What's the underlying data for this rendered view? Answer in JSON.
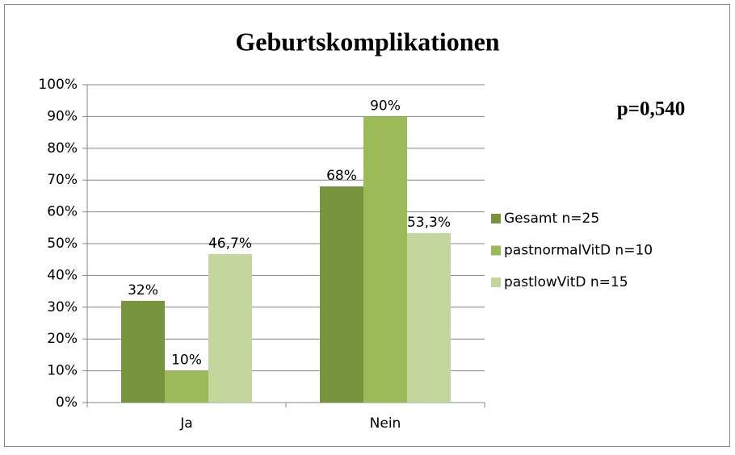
{
  "chart_data": {
    "type": "bar",
    "title": "Geburtskomplikationen",
    "annotation": "p=0,540",
    "categories": [
      "Ja",
      "Nein"
    ],
    "series": [
      {
        "name": "Gesamt n=25",
        "color": "#77933c",
        "values": [
          32,
          68
        ],
        "value_labels": [
          "32%",
          "68%"
        ]
      },
      {
        "name": "pastnormalVitD n=10",
        "color": "#9bbb59",
        "values": [
          10,
          90
        ],
        "value_labels": [
          "10%",
          "90%"
        ]
      },
      {
        "name": "pastlowVitD n=15",
        "color": "#c3d69b",
        "values": [
          46.7,
          53.3
        ],
        "value_labels": [
          "46,7%",
          "53,3%"
        ]
      }
    ],
    "ylim": [
      0,
      100
    ],
    "yticks": [
      {
        "value": 0,
        "label": "0%"
      },
      {
        "value": 10,
        "label": "10%"
      },
      {
        "value": 20,
        "label": "20%"
      },
      {
        "value": 30,
        "label": "30%"
      },
      {
        "value": 40,
        "label": "40%"
      },
      {
        "value": 50,
        "label": "50%"
      },
      {
        "value": 60,
        "label": "60%"
      },
      {
        "value": 70,
        "label": "70%"
      },
      {
        "value": 80,
        "label": "80%"
      },
      {
        "value": 90,
        "label": "90%"
      },
      {
        "value": 100,
        "label": "100%"
      }
    ],
    "grid": true,
    "legend": "right"
  }
}
